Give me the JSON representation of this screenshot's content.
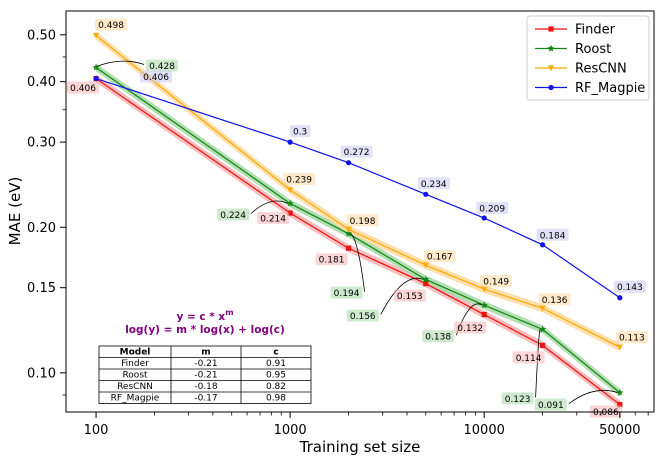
{
  "chart_data": {
    "type": "line",
    "xlabel": "Training set size",
    "ylabel": "MAE (eV)",
    "xscale": "log",
    "yscale": "log",
    "xlim": [
      70,
      75000
    ],
    "ylim": [
      0.083,
      0.56
    ],
    "x": [
      100,
      1000,
      2000,
      5000,
      10000,
      20000,
      50000
    ],
    "xticks": [
      {
        "v": 100,
        "label": "100"
      },
      {
        "v": 1000,
        "label": "1000"
      },
      {
        "v": 10000,
        "label": "10000"
      },
      {
        "v": 50000,
        "label": "50000"
      }
    ],
    "yticks": [
      {
        "v": 0.1,
        "label": "0.10"
      },
      {
        "v": 0.15,
        "label": "0.15"
      },
      {
        "v": 0.2,
        "label": "0.20"
      },
      {
        "v": 0.3,
        "label": "0.30"
      },
      {
        "v": 0.4,
        "label": "0.40"
      },
      {
        "v": 0.5,
        "label": "0.50"
      }
    ],
    "legend_position": "top-right",
    "series": [
      {
        "name": "Finder",
        "color": "#ee1111",
        "fill": "#f8b4b4",
        "marker": "square",
        "values": [
          0.406,
          0.214,
          0.181,
          0.153,
          0.132,
          0.114,
          0.086
        ],
        "labels": [
          "0.406",
          "0.214",
          "0.181",
          "0.153",
          "0.132",
          "0.114",
          "0.086"
        ]
      },
      {
        "name": "Roost",
        "color": "#118811",
        "fill": "#a6d8a6",
        "marker": "star",
        "values": [
          0.428,
          0.224,
          0.194,
          0.156,
          0.138,
          0.123,
          0.091
        ],
        "labels": [
          "0.428",
          "0.224",
          "0.194",
          "0.156",
          "0.138",
          "0.123",
          "0.091"
        ]
      },
      {
        "name": "ResCNN",
        "color": "#ffaa00",
        "fill": "#ffd9a0",
        "marker": "triangle-down",
        "values": [
          0.498,
          0.239,
          0.198,
          0.167,
          0.149,
          0.136,
          0.113
        ],
        "labels": [
          "0.498",
          "0.239",
          "0.198",
          "0.167",
          "0.149",
          "0.136",
          "0.113"
        ]
      },
      {
        "name": "RF_Magpie",
        "color": "#1111ee",
        "fill": "#c8c8f4",
        "marker": "circle",
        "values": [
          0.406,
          0.3,
          0.272,
          0.234,
          0.209,
          0.184,
          0.143
        ],
        "labels": [
          "0.406",
          "0.3",
          "0.272",
          "0.234",
          "0.209",
          "0.184",
          "0.143"
        ]
      }
    ],
    "annotation": {
      "line1": "y = c * x",
      "line1_sup": "m",
      "line2": "log(y) = m * log(x) + log(c)"
    },
    "fit_table": {
      "columns": [
        "Model",
        "m",
        "c"
      ],
      "rows": [
        [
          "Finder",
          "-0.21",
          "0.91"
        ],
        [
          "Roost",
          "-0.21",
          "0.95"
        ],
        [
          "ResCNN",
          "-0.18",
          "0.82"
        ],
        [
          "RF_Magpie",
          "-0.17",
          "0.98"
        ]
      ]
    }
  }
}
